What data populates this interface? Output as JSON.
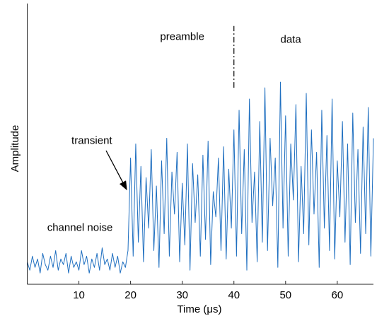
{
  "chart_data": {
    "type": "line",
    "x_label": "Time (μs)",
    "y_label": "Amplitude",
    "color": "#1f6fc0",
    "xlim": [
      0,
      67
    ],
    "ylim": [
      0,
      1
    ],
    "xticks": [
      10,
      20,
      30,
      40,
      50,
      60
    ],
    "annotations": [
      {
        "text": "preamble",
        "x": 30,
        "y": 0.88
      },
      {
        "text": "data",
        "x": 51,
        "y": 0.87
      },
      {
        "text": "transient",
        "x": 12.5,
        "y": 0.51
      },
      {
        "text": "channel noise",
        "x": 10.2,
        "y": 0.2
      }
    ],
    "divider": {
      "x": 40,
      "y": [
        0.7,
        0.92
      ]
    },
    "x": [
      0,
      0.5,
      1,
      1.5,
      2,
      2.5,
      3,
      3.5,
      4,
      4.5,
      5,
      5.5,
      6,
      6.5,
      7,
      7.5,
      8,
      8.5,
      9,
      9.5,
      10,
      10.5,
      11,
      11.5,
      12,
      12.5,
      13,
      13.5,
      14,
      14.5,
      15,
      15.5,
      16,
      16.5,
      17,
      17.5,
      18,
      18.5,
      19,
      19.5,
      20,
      20.5,
      21,
      21.5,
      22,
      22.5,
      23,
      23.5,
      24,
      24.5,
      25,
      25.5,
      26,
      26.5,
      27,
      27.5,
      28,
      28.5,
      29,
      29.5,
      30,
      30.5,
      31,
      31.5,
      32,
      32.5,
      33,
      33.5,
      34,
      34.5,
      35,
      35.5,
      36,
      36.5,
      37,
      37.5,
      38,
      38.5,
      39,
      39.5,
      40,
      40.5,
      41,
      41.5,
      42,
      42.5,
      43,
      43.5,
      44,
      44.5,
      45,
      45.5,
      46,
      46.5,
      47,
      47.5,
      48,
      48.5,
      49,
      49.5,
      50,
      50.5,
      51,
      51.5,
      52,
      52.5,
      53,
      53.5,
      54,
      54.5,
      55,
      55.5,
      56,
      56.5,
      57,
      57.5,
      58,
      58.5,
      59,
      59.5,
      60,
      60.5,
      61,
      61.5,
      62,
      62.5,
      63,
      63.5,
      64,
      64.5,
      65,
      65.5,
      66,
      66.5,
      67
    ],
    "values": [
      0.08,
      0.05,
      0.1,
      0.06,
      0.09,
      0.04,
      0.11,
      0.07,
      0.05,
      0.1,
      0.06,
      0.12,
      0.05,
      0.09,
      0.07,
      0.11,
      0.04,
      0.1,
      0.06,
      0.08,
      0.05,
      0.12,
      0.07,
      0.1,
      0.04,
      0.09,
      0.06,
      0.11,
      0.05,
      0.13,
      0.07,
      0.09,
      0.05,
      0.11,
      0.06,
      0.1,
      0.04,
      0.08,
      0.06,
      0.12,
      0.45,
      0.1,
      0.5,
      0.15,
      0.42,
      0.08,
      0.38,
      0.2,
      0.48,
      0.12,
      0.35,
      0.06,
      0.44,
      0.18,
      0.52,
      0.1,
      0.4,
      0.25,
      0.47,
      0.08,
      0.36,
      0.14,
      0.5,
      0.05,
      0.43,
      0.22,
      0.39,
      0.1,
      0.46,
      0.16,
      0.51,
      0.07,
      0.33,
      0.24,
      0.45,
      0.12,
      0.49,
      0.09,
      0.41,
      0.2,
      0.55,
      0.1,
      0.62,
      0.18,
      0.48,
      0.05,
      0.66,
      0.22,
      0.4,
      0.08,
      0.58,
      0.15,
      0.7,
      0.12,
      0.52,
      0.28,
      0.45,
      0.06,
      0.72,
      0.2,
      0.6,
      0.1,
      0.5,
      0.3,
      0.64,
      0.08,
      0.42,
      0.18,
      0.68,
      0.14,
      0.55,
      0.25,
      0.47,
      0.06,
      0.62,
      0.2,
      0.53,
      0.12,
      0.66,
      0.09,
      0.44,
      0.24,
      0.58,
      0.15,
      0.5,
      0.07,
      0.61,
      0.22,
      0.48,
      0.11,
      0.56,
      0.18,
      0.63,
      0.1,
      0.52
    ]
  }
}
